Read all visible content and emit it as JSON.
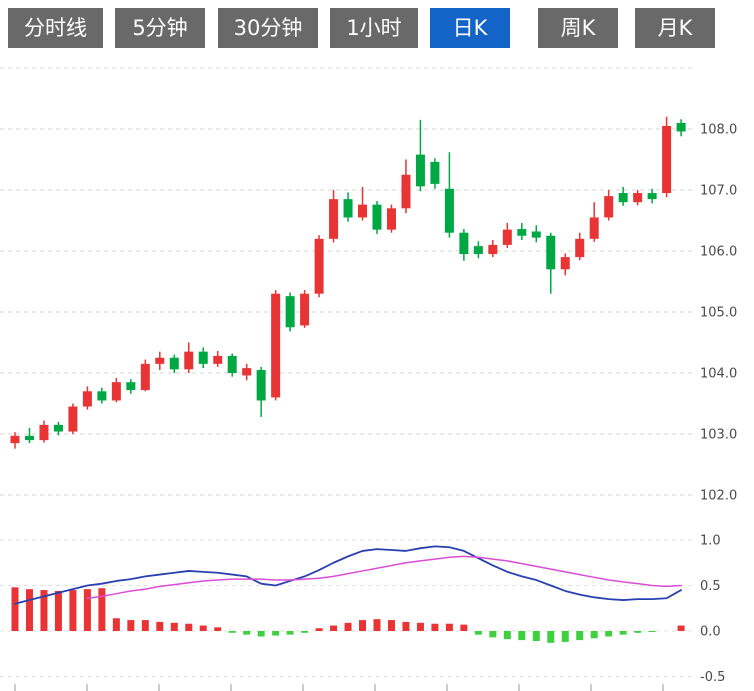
{
  "tabs": [
    {
      "label": "分时线",
      "active": false
    },
    {
      "label": "5分钟",
      "active": false
    },
    {
      "label": "30分钟",
      "active": false
    },
    {
      "label": "1小时",
      "active": false
    },
    {
      "label": "日K",
      "active": true
    },
    {
      "label": "周K",
      "active": false
    },
    {
      "label": "月K",
      "active": false
    }
  ],
  "colors": {
    "up": "#e83434",
    "down": "#00a843",
    "hist_up": "#e83434",
    "hist_down": "#3fd03f",
    "dif_line": "#2840b0",
    "dea_line": "#d94ed4",
    "grid": "#d6d6d6",
    "axis_text": "#4a4a4a",
    "tick": "#999999",
    "tab_bg": "#696969",
    "tab_active_bg": "#1464c8",
    "tab_text": "#ffffff"
  },
  "chart_data": {
    "type": "candlestick+macd",
    "interval_selected": "日K",
    "price_axis": {
      "ticks": [
        {
          "value": 109.0,
          "label": ""
        },
        {
          "value": 108.0,
          "label": "108.0"
        },
        {
          "value": 107.0,
          "label": "107.0"
        },
        {
          "value": 106.0,
          "label": "106.0"
        },
        {
          "value": 105.0,
          "label": "105.0"
        },
        {
          "value": 104.0,
          "label": "104.0"
        },
        {
          "value": 103.0,
          "label": "103.0"
        },
        {
          "value": 102.0,
          "label": "102.0"
        }
      ]
    },
    "indicator_axis": {
      "ticks": [
        {
          "value": 1.0,
          "label": "1.0"
        },
        {
          "value": 0.5,
          "label": "0.5"
        },
        {
          "value": 0.0,
          "label": "0.0"
        },
        {
          "value": -0.5,
          "label": "-0.5"
        }
      ]
    },
    "candles_ohlc": [
      [
        102.85,
        103.03,
        102.76,
        102.97
      ],
      [
        102.97,
        103.1,
        102.85,
        102.9
      ],
      [
        102.9,
        103.22,
        102.86,
        103.15
      ],
      [
        103.15,
        103.2,
        102.98,
        103.04
      ],
      [
        103.04,
        103.5,
        103.0,
        103.45
      ],
      [
        103.45,
        103.78,
        103.4,
        103.7
      ],
      [
        103.7,
        103.76,
        103.5,
        103.55
      ],
      [
        103.55,
        103.92,
        103.52,
        103.85
      ],
      [
        103.85,
        103.9,
        103.66,
        103.72
      ],
      [
        103.72,
        104.22,
        103.7,
        104.15
      ],
      [
        104.15,
        104.35,
        104.05,
        104.25
      ],
      [
        104.25,
        104.3,
        104.0,
        104.06
      ],
      [
        104.06,
        104.5,
        104.0,
        104.35
      ],
      [
        104.35,
        104.42,
        104.08,
        104.15
      ],
      [
        104.15,
        104.36,
        104.1,
        104.28
      ],
      [
        104.28,
        104.32,
        103.94,
        104.0
      ],
      [
        103.96,
        104.15,
        103.88,
        104.08
      ],
      [
        104.05,
        104.1,
        103.28,
        103.55
      ],
      [
        103.6,
        105.36,
        103.55,
        105.3
      ],
      [
        105.26,
        105.32,
        104.68,
        104.75
      ],
      [
        104.78,
        105.36,
        104.74,
        105.3
      ],
      [
        105.3,
        106.26,
        105.24,
        106.2
      ],
      [
        106.2,
        107.0,
        106.14,
        106.85
      ],
      [
        106.85,
        106.96,
        106.48,
        106.55
      ],
      [
        106.55,
        107.05,
        106.5,
        106.76
      ],
      [
        106.76,
        106.82,
        106.28,
        106.35
      ],
      [
        106.35,
        106.76,
        106.3,
        106.7
      ],
      [
        106.7,
        107.5,
        106.62,
        107.25
      ],
      [
        107.58,
        108.15,
        106.98,
        107.06
      ],
      [
        107.46,
        107.52,
        107.02,
        107.1
      ],
      [
        107.02,
        107.62,
        106.22,
        106.3
      ],
      [
        106.3,
        106.36,
        105.84,
        105.95
      ],
      [
        106.08,
        106.16,
        105.88,
        105.95
      ],
      [
        105.95,
        106.18,
        105.9,
        106.1
      ],
      [
        106.1,
        106.46,
        106.05,
        106.35
      ],
      [
        106.36,
        106.46,
        106.18,
        106.25
      ],
      [
        106.32,
        106.42,
        106.14,
        106.22
      ],
      [
        106.25,
        106.3,
        105.3,
        105.7
      ],
      [
        105.7,
        105.96,
        105.6,
        105.9
      ],
      [
        105.9,
        106.3,
        105.85,
        106.2
      ],
      [
        106.2,
        106.8,
        106.15,
        106.55
      ],
      [
        106.55,
        107.0,
        106.5,
        106.9
      ],
      [
        106.95,
        107.05,
        106.74,
        106.8
      ],
      [
        106.8,
        107.0,
        106.75,
        106.95
      ],
      [
        106.95,
        107.02,
        106.78,
        106.85
      ],
      [
        106.95,
        108.2,
        106.88,
        108.05
      ],
      [
        108.1,
        108.16,
        107.88,
        107.96
      ]
    ],
    "macd": {
      "dif": [
        0.3,
        0.34,
        0.38,
        0.42,
        0.46,
        0.5,
        0.52,
        0.55,
        0.57,
        0.6,
        0.62,
        0.64,
        0.66,
        0.65,
        0.64,
        0.62,
        0.6,
        0.52,
        0.5,
        0.55,
        0.6,
        0.67,
        0.75,
        0.82,
        0.88,
        0.9,
        0.89,
        0.88,
        0.91,
        0.93,
        0.92,
        0.88,
        0.8,
        0.72,
        0.65,
        0.6,
        0.56,
        0.5,
        0.44,
        0.4,
        0.37,
        0.35,
        0.34,
        0.35,
        0.35,
        0.36,
        0.45
      ],
      "dea": [
        null,
        null,
        null,
        null,
        null,
        0.36,
        0.38,
        0.41,
        0.44,
        0.46,
        0.49,
        0.51,
        0.53,
        0.55,
        0.56,
        0.57,
        0.57,
        0.57,
        0.56,
        0.56,
        0.57,
        0.58,
        0.6,
        0.63,
        0.66,
        0.69,
        0.72,
        0.75,
        0.77,
        0.79,
        0.81,
        0.82,
        0.81,
        0.79,
        0.77,
        0.74,
        0.71,
        0.68,
        0.65,
        0.62,
        0.59,
        0.56,
        0.54,
        0.52,
        0.5,
        0.49,
        0.5
      ],
      "histogram": [
        0.48,
        0.46,
        0.45,
        0.44,
        0.45,
        0.46,
        0.47,
        0.14,
        0.12,
        0.12,
        0.1,
        0.09,
        0.08,
        0.06,
        0.04,
        -0.02,
        -0.04,
        -0.06,
        -0.05,
        -0.04,
        -0.02,
        0.03,
        0.06,
        0.09,
        0.12,
        0.13,
        0.12,
        0.1,
        0.09,
        0.08,
        0.08,
        0.07,
        -0.04,
        -0.07,
        -0.09,
        -0.1,
        -0.11,
        -0.13,
        -0.12,
        -0.1,
        -0.08,
        -0.06,
        -0.04,
        -0.02,
        -0.01,
        0.0,
        0.06
      ]
    }
  }
}
